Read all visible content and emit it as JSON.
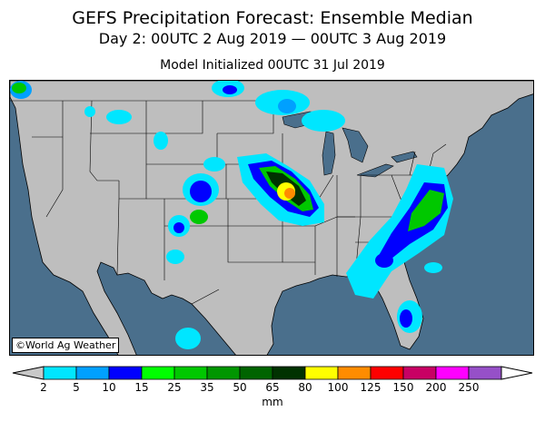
{
  "title": "GEFS Precipitation Forecast: Ensemble Median",
  "subtitle": "Day 2: 00UTC 2 Aug 2019 — 00UTC 3 Aug 2019",
  "init_line": "Model Initialized 00UTC 31 Jul 2019",
  "credit": "©World Ag Weather",
  "legend": {
    "units": "mm",
    "ticks": [
      "2",
      "5",
      "10",
      "15",
      "25",
      "35",
      "50",
      "65",
      "80",
      "100",
      "125",
      "150",
      "200",
      "250"
    ],
    "colors": [
      "#00e6ff",
      "#00a0ff",
      "#0000ff",
      "#00ff00",
      "#00c800",
      "#009600",
      "#006400",
      "#003200",
      "#ffff00",
      "#ff8c00",
      "#ff0000",
      "#c80064",
      "#ff00ff",
      "#9650c8"
    ],
    "below_color": "#c8c8c8",
    "above_color": "#ffffff"
  },
  "colors": {
    "ocean": "#4a6f8c",
    "land": "#bebebe",
    "border": "#000000"
  }
}
